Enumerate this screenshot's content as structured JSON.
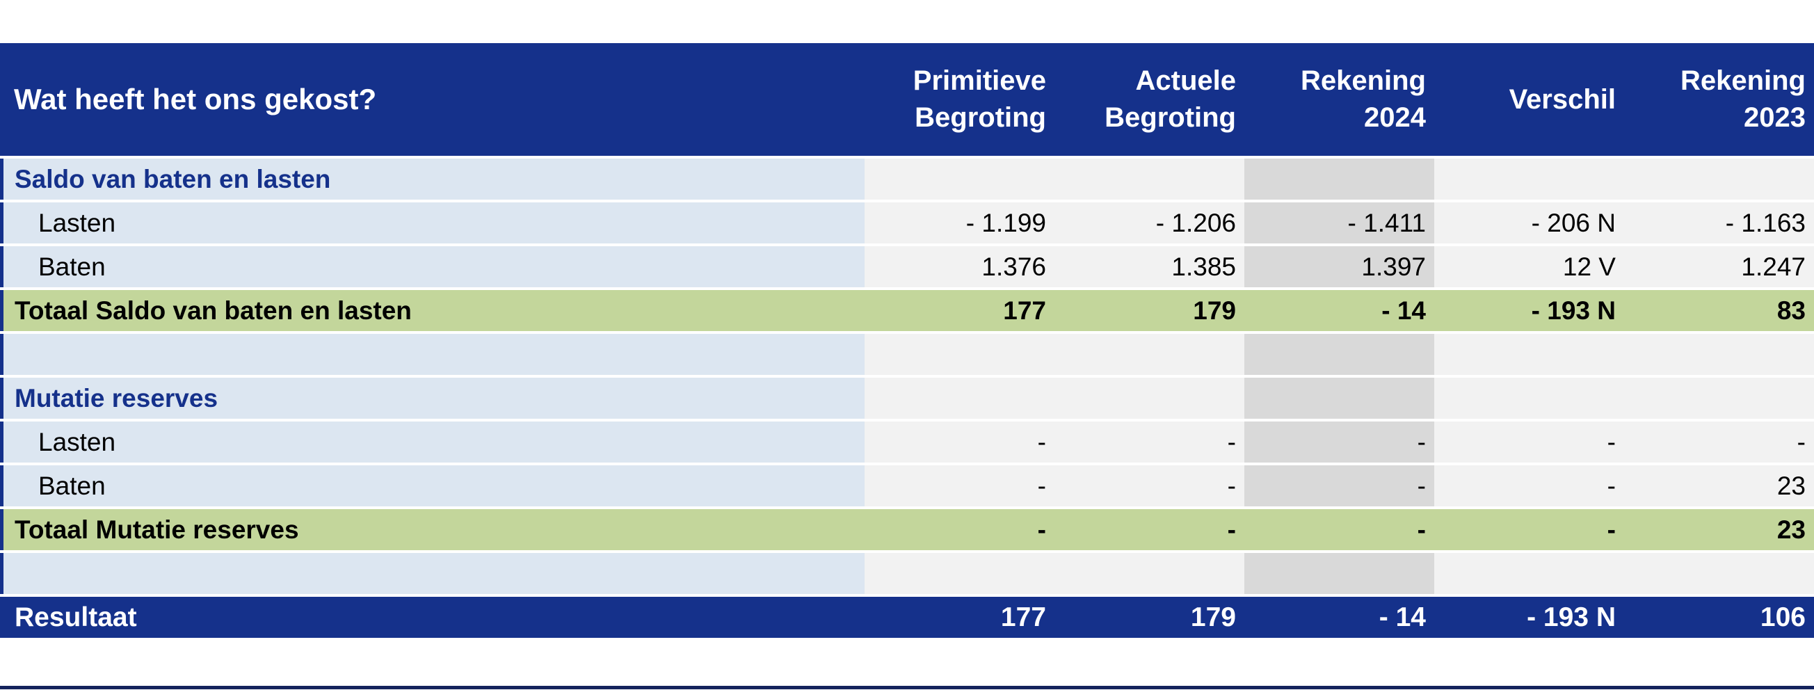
{
  "table": {
    "title": "Wat heeft het ons gekost?",
    "columns": [
      "Primitieve\nBegroting",
      "Actuele\nBegroting",
      "Rekening\n2024",
      "Verschil",
      "Rekening\n2023"
    ],
    "rows": [
      {
        "type": "section",
        "label": "Saldo van baten en lasten",
        "values": [
          "",
          "",
          "",
          "",
          ""
        ]
      },
      {
        "type": "detail",
        "label": "Lasten",
        "values": [
          "- 1.199",
          "- 1.206",
          "- 1.411",
          "- 206 N",
          "- 1.163"
        ]
      },
      {
        "type": "detail",
        "label": "Baten",
        "values": [
          "1.376",
          "1.385",
          "1.397",
          "12 V",
          "1.247"
        ]
      },
      {
        "type": "total",
        "label": "Totaal Saldo van baten en lasten",
        "values": [
          "177",
          "179",
          "- 14",
          "- 193 N",
          "83"
        ]
      },
      {
        "type": "empty",
        "label": "",
        "values": [
          "",
          "",
          "",
          "",
          ""
        ]
      },
      {
        "type": "section",
        "label": "Mutatie reserves",
        "values": [
          "",
          "",
          "",
          "",
          ""
        ]
      },
      {
        "type": "detail",
        "label": "Lasten",
        "values": [
          "-",
          "-",
          "-",
          "-",
          "-"
        ]
      },
      {
        "type": "detail",
        "label": "Baten",
        "values": [
          "-",
          "-",
          "-",
          "-",
          "23"
        ]
      },
      {
        "type": "total",
        "label": "Totaal Mutatie reserves",
        "values": [
          "-",
          "-",
          "-",
          "-",
          "23"
        ]
      },
      {
        "type": "empty",
        "label": "",
        "values": [
          "",
          "",
          "",
          "",
          ""
        ]
      },
      {
        "type": "result",
        "label": "Resultaat",
        "values": [
          "177",
          "179",
          "- 14",
          "- 193 N",
          "106"
        ]
      }
    ],
    "colors": {
      "header_blue": "#15318B",
      "light_blue": "#DCE6F1",
      "light_gray": "#F2F2F2",
      "mid_gray": "#D9D9D9",
      "green": "#C3D69B",
      "bottom_line": "#14235C",
      "white": "#FFFFFF",
      "text_black": "#000000"
    }
  }
}
